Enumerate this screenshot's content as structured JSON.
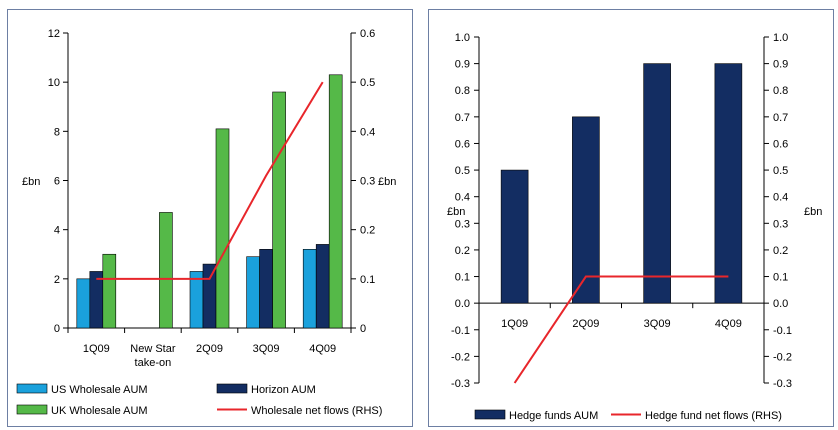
{
  "chart_data": [
    {
      "type": "bar",
      "categories": [
        "1Q09",
        "New Star take-on",
        "2Q09",
        "3Q09",
        "4Q09"
      ],
      "category_lines": [
        [
          "1Q09"
        ],
        [
          "New Star",
          "take-on"
        ],
        [
          "2Q09"
        ],
        [
          "3Q09"
        ],
        [
          "4Q09"
        ]
      ],
      "ylabel": "£bn",
      "y2label": "£bn",
      "ylim": [
        0,
        12
      ],
      "yticks": [
        0,
        2,
        4,
        6,
        8,
        10,
        12
      ],
      "y2lim": [
        0,
        0.6
      ],
      "y2ticks": [
        0,
        0.1,
        0.2,
        0.3,
        0.4,
        0.5,
        0.6
      ],
      "series": [
        {
          "name": "US Wholesale AUM",
          "kind": "bar",
          "axis": "left",
          "color": "#1aa1dc",
          "values": [
            2.0,
            null,
            2.3,
            2.9,
            3.2
          ]
        },
        {
          "name": "Horizon AUM",
          "kind": "bar",
          "axis": "left",
          "color": "#132d62",
          "values": [
            2.3,
            null,
            2.6,
            3.2,
            3.4
          ]
        },
        {
          "name": "UK Wholesale AUM",
          "kind": "bar",
          "axis": "left",
          "color": "#55b948",
          "values": [
            3.0,
            4.7,
            8.1,
            9.6,
            10.3
          ]
        },
        {
          "name": "Wholesale net flows (RHS)",
          "kind": "line",
          "axis": "right",
          "color": "#e8262b",
          "values": [
            0.1,
            0.1,
            0.1,
            0.31,
            0.5
          ]
        }
      ],
      "legend_position": "bottom",
      "grid": false
    },
    {
      "type": "bar",
      "categories": [
        "1Q09",
        "2Q09",
        "3Q09",
        "4Q09"
      ],
      "ylabel": "£bn",
      "y2label": "£bn",
      "ylim": [
        -0.3,
        1.0
      ],
      "yticks": [
        "1.0",
        "0.9",
        "0.8",
        "0.7",
        "0.6",
        "0.5",
        "0.4",
        "0.3",
        "0.2",
        "0.1",
        "0.0",
        "-0.1",
        "-0.2",
        "-0.3"
      ],
      "y2lim": [
        -0.3,
        1.0
      ],
      "y2ticks": [
        "1.0",
        "0.9",
        "0.8",
        "0.7",
        "0.6",
        "0.5",
        "0.4",
        "0.3",
        "0.2",
        "0.1",
        "0.0",
        "-0.1",
        "-0.2",
        "-0.3"
      ],
      "series": [
        {
          "name": "Hedge funds AUM",
          "kind": "bar",
          "axis": "left",
          "color": "#132d62",
          "values": [
            0.5,
            0.7,
            0.9,
            0.9
          ]
        },
        {
          "name": "Hedge fund net flows (RHS)",
          "kind": "line",
          "axis": "right",
          "color": "#e8262b",
          "values": [
            -0.3,
            0.1,
            0.1,
            0.1
          ]
        }
      ],
      "legend_position": "bottom",
      "grid": false
    }
  ]
}
